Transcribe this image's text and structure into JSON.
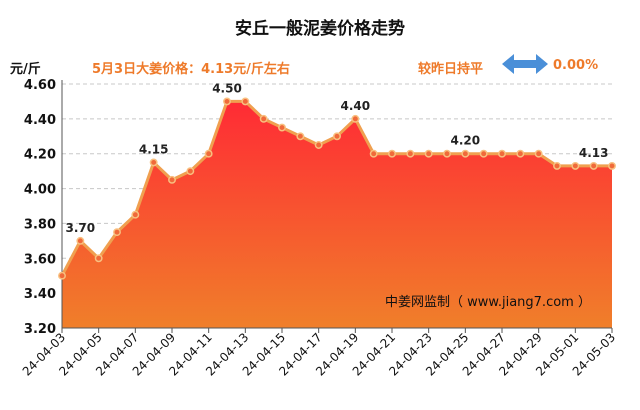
{
  "header": {
    "title": "安丘一般泥姜价格走势",
    "unit": "元/斤",
    "price_text": "5月3日大姜价格：4.13元/斤左右",
    "compare_text": "较昨日持平",
    "change_value": "0.00%",
    "compare_icon": "double-arrow-icon"
  },
  "colors": {
    "accent": "#ee7a2a",
    "fill_top": "#ff2b35",
    "fill_bottom": "#f07f2a",
    "line": "#f0a050",
    "arrow": "#4a8fd8"
  },
  "chart_data": {
    "type": "area",
    "title": "安丘一般泥姜价格走势",
    "ylabel": "元/斤",
    "xlabel": "",
    "x": [
      "24-04-03",
      "24-04-04",
      "24-04-05",
      "24-04-06",
      "24-04-07",
      "24-04-08",
      "24-04-09",
      "24-04-10",
      "24-04-11",
      "24-04-12",
      "24-04-13",
      "24-04-14",
      "24-04-15",
      "24-04-16",
      "24-04-17",
      "24-04-18",
      "24-04-19",
      "24-04-20",
      "24-04-21",
      "24-04-22",
      "24-04-23",
      "24-04-24",
      "24-04-25",
      "24-04-26",
      "24-04-27",
      "24-04-28",
      "24-04-29",
      "24-04-30",
      "24-05-01",
      "24-05-02",
      "24-05-03"
    ],
    "xtick_labels": [
      "24-04-03",
      "24-04-05",
      "24-04-07",
      "24-04-09",
      "24-04-11",
      "24-04-13",
      "24-04-15",
      "24-04-17",
      "24-04-19",
      "24-04-21",
      "24-04-23",
      "24-04-25",
      "24-04-27",
      "24-04-29",
      "24-05-01",
      "24-05-03"
    ],
    "values": [
      3.5,
      3.7,
      3.6,
      3.75,
      3.85,
      4.15,
      4.05,
      4.1,
      4.2,
      4.5,
      4.5,
      4.4,
      4.35,
      4.3,
      4.25,
      4.3,
      4.4,
      4.2,
      4.2,
      4.2,
      4.2,
      4.2,
      4.2,
      4.2,
      4.2,
      4.2,
      4.2,
      4.13,
      4.13,
      4.13,
      4.13
    ],
    "data_labels": [
      {
        "x": "24-04-04",
        "text": "3.70"
      },
      {
        "x": "24-04-08",
        "text": "4.15"
      },
      {
        "x": "24-04-12",
        "text": "4.50"
      },
      {
        "x": "24-04-19",
        "text": "4.40"
      },
      {
        "x": "24-04-25",
        "text": "4.20"
      },
      {
        "x": "24-05-02",
        "text": "4.13"
      }
    ],
    "yticks": [
      "3.20",
      "3.40",
      "3.60",
      "3.80",
      "4.00",
      "4.20",
      "4.40",
      "4.60"
    ],
    "ylim": [
      3.2,
      4.6
    ],
    "grid": true,
    "watermark": "中姜网监制（ www.jiang7.com ）"
  }
}
